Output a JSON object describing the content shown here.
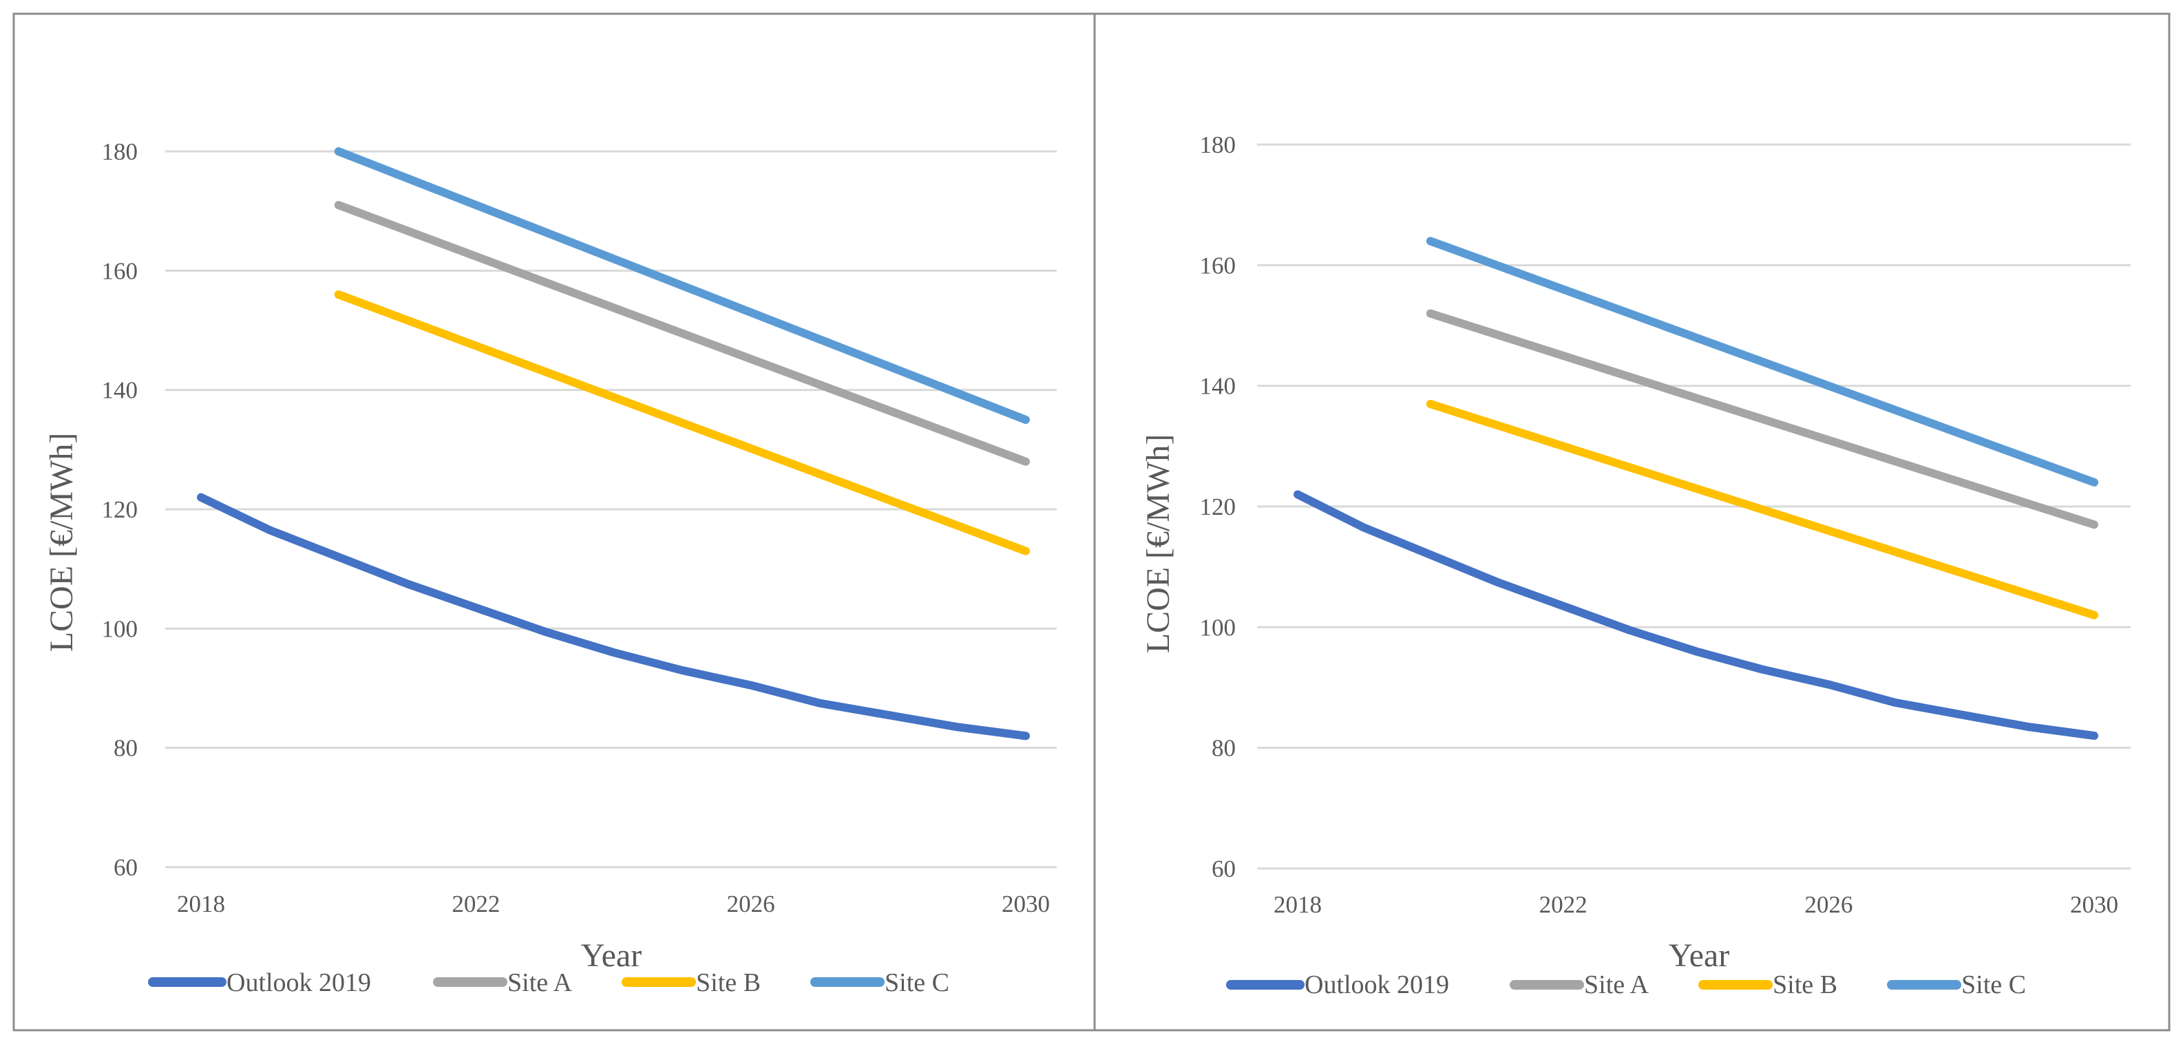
{
  "chart_data": [
    {
      "type": "line",
      "xlabel": "Year",
      "ylabel": "LCOE [€/MWh]",
      "ylim": [
        60,
        190
      ],
      "y_ticks": [
        60,
        80,
        100,
        120,
        140,
        160,
        180
      ],
      "xlim": [
        2018,
        2030
      ],
      "x_ticks": [
        2018,
        2022,
        2026,
        2030
      ],
      "grid": true,
      "legend_position": "bottom",
      "series": [
        {
          "name": "Outlook 2019",
          "color": "#4472C4",
          "x": [
            2018,
            2019,
            2020,
            2021,
            2022,
            2023,
            2024,
            2025,
            2026,
            2027,
            2028,
            2029,
            2030
          ],
          "values": [
            122,
            116.5,
            112,
            107.5,
            103.5,
            99.5,
            96,
            93,
            90.5,
            87.5,
            85.5,
            83.5,
            82
          ]
        },
        {
          "name": "Site A",
          "color": "#A5A5A5",
          "x": [
            2020,
            2030
          ],
          "values": [
            171,
            128
          ]
        },
        {
          "name": "Site B",
          "color": "#FFC000",
          "x": [
            2020,
            2030
          ],
          "values": [
            156,
            113
          ]
        },
        {
          "name": "Site C",
          "color": "#5B9BD5",
          "x": [
            2020,
            2030
          ],
          "values": [
            180,
            135
          ]
        }
      ]
    },
    {
      "type": "line",
      "xlabel": "Year",
      "ylabel": "LCOE [€/MWh]",
      "ylim": [
        60,
        190
      ],
      "y_ticks": [
        60,
        80,
        100,
        120,
        140,
        160,
        180
      ],
      "xlim": [
        2018,
        2030
      ],
      "x_ticks": [
        2018,
        2022,
        2026,
        2030
      ],
      "grid": true,
      "legend_position": "bottom",
      "series": [
        {
          "name": "Outlook 2019",
          "color": "#4472C4",
          "x": [
            2018,
            2019,
            2020,
            2021,
            2022,
            2023,
            2024,
            2025,
            2026,
            2027,
            2028,
            2029,
            2030
          ],
          "values": [
            122,
            116.5,
            112,
            107.5,
            103.5,
            99.5,
            96,
            93,
            90.5,
            87.5,
            85.5,
            83.5,
            82
          ]
        },
        {
          "name": "Site A",
          "color": "#A5A5A5",
          "x": [
            2020,
            2030
          ],
          "values": [
            152,
            117
          ]
        },
        {
          "name": "Site B",
          "color": "#FFC000",
          "x": [
            2020,
            2030
          ],
          "values": [
            137,
            102
          ]
        },
        {
          "name": "Site C",
          "color": "#5B9BD5",
          "x": [
            2020,
            2030
          ],
          "values": [
            164,
            124
          ]
        }
      ]
    }
  ]
}
